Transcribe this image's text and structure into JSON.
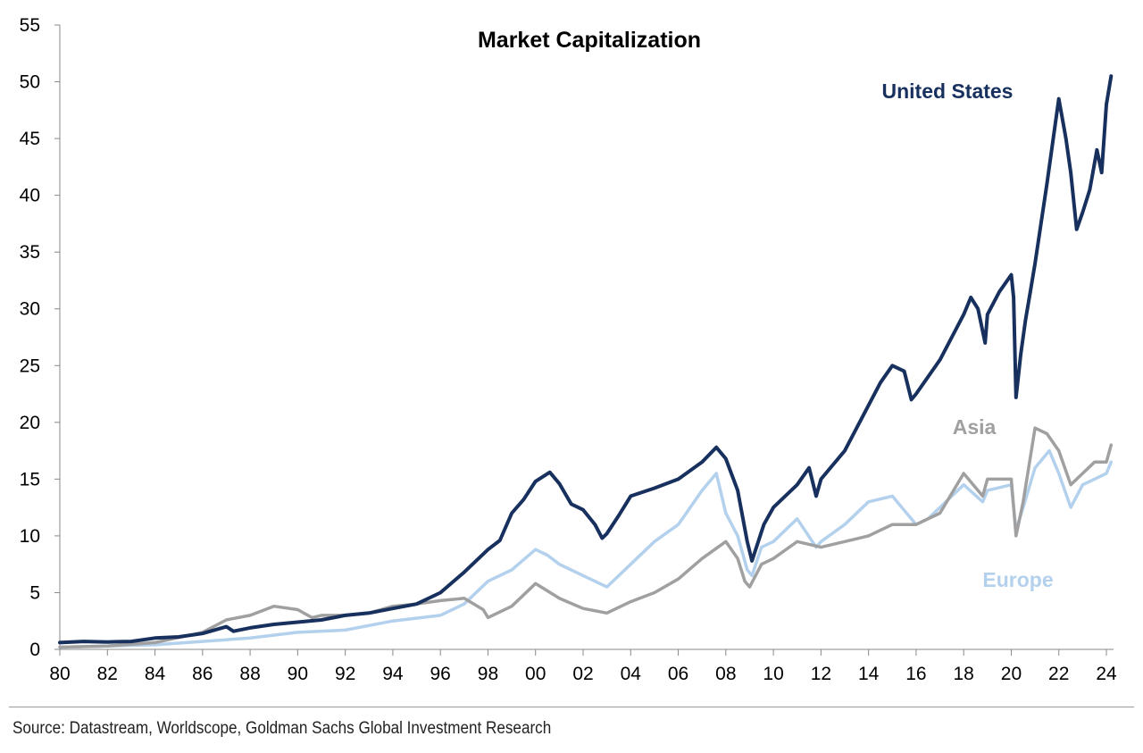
{
  "chart_data": {
    "type": "line",
    "title": "Market Capitalization",
    "xlabel": "",
    "ylabel": "",
    "xlim": [
      1980,
      2024.3
    ],
    "ylim": [
      0,
      55
    ],
    "x_tick_values": [
      1980,
      1982,
      1984,
      1986,
      1988,
      1990,
      1992,
      1994,
      1996,
      1998,
      2000,
      2002,
      2004,
      2006,
      2008,
      2010,
      2012,
      2014,
      2016,
      2018,
      2020,
      2022,
      2024
    ],
    "x_tick_labels": [
      "80",
      "82",
      "84",
      "86",
      "88",
      "90",
      "92",
      "94",
      "96",
      "98",
      "00",
      "02",
      "04",
      "06",
      "08",
      "10",
      "12",
      "14",
      "16",
      "18",
      "20",
      "22",
      "24"
    ],
    "y_ticks": [
      0,
      5,
      10,
      15,
      20,
      25,
      30,
      35,
      40,
      45,
      50,
      55
    ],
    "grid": false,
    "legend": "inline labels",
    "series": [
      {
        "name": "United States",
        "color": "#17305e",
        "points": [
          [
            1980,
            0.6
          ],
          [
            1981,
            0.7
          ],
          [
            1982,
            0.65
          ],
          [
            1983,
            0.7
          ],
          [
            1984,
            1.0
          ],
          [
            1985,
            1.1
          ],
          [
            1986,
            1.4
          ],
          [
            1987,
            2.0
          ],
          [
            1987.3,
            1.6
          ],
          [
            1988,
            1.9
          ],
          [
            1989,
            2.2
          ],
          [
            1990,
            2.4
          ],
          [
            1991,
            2.6
          ],
          [
            1992,
            3.0
          ],
          [
            1993,
            3.2
          ],
          [
            1994,
            3.6
          ],
          [
            1995,
            4.0
          ],
          [
            1996,
            5.0
          ],
          [
            1997,
            6.8
          ],
          [
            1998,
            8.8
          ],
          [
            1998.5,
            9.6
          ],
          [
            1999,
            12.0
          ],
          [
            1999.5,
            13.2
          ],
          [
            2000,
            14.8
          ],
          [
            2000.6,
            15.6
          ],
          [
            2001,
            14.6
          ],
          [
            2001.5,
            12.8
          ],
          [
            2002,
            12.3
          ],
          [
            2002.5,
            11.0
          ],
          [
            2002.8,
            9.8
          ],
          [
            2003,
            10.2
          ],
          [
            2003.5,
            11.8
          ],
          [
            2004,
            13.5
          ],
          [
            2005,
            14.2
          ],
          [
            2006,
            15.0
          ],
          [
            2007,
            16.5
          ],
          [
            2007.6,
            17.8
          ],
          [
            2008,
            16.8
          ],
          [
            2008.5,
            14.0
          ],
          [
            2008.9,
            9.5
          ],
          [
            2009.1,
            7.8
          ],
          [
            2009.6,
            11.0
          ],
          [
            2010,
            12.5
          ],
          [
            2011,
            14.5
          ],
          [
            2011.5,
            16.0
          ],
          [
            2011.8,
            13.5
          ],
          [
            2012,
            15.0
          ],
          [
            2013,
            17.5
          ],
          [
            2014,
            21.5
          ],
          [
            2014.5,
            23.5
          ],
          [
            2015,
            25.0
          ],
          [
            2015.5,
            24.5
          ],
          [
            2015.8,
            22.0
          ],
          [
            2016,
            22.5
          ],
          [
            2016.5,
            24.0
          ],
          [
            2017,
            25.5
          ],
          [
            2017.5,
            27.5
          ],
          [
            2018,
            29.5
          ],
          [
            2018.3,
            31.0
          ],
          [
            2018.6,
            30.0
          ],
          [
            2018.9,
            27.0
          ],
          [
            2019,
            29.5
          ],
          [
            2019.5,
            31.5
          ],
          [
            2020,
            33.0
          ],
          [
            2020.1,
            31.0
          ],
          [
            2020.2,
            22.2
          ],
          [
            2020.4,
            26.0
          ],
          [
            2020.6,
            29.0
          ],
          [
            2020.8,
            31.5
          ],
          [
            2021,
            34.0
          ],
          [
            2021.5,
            41.0
          ],
          [
            2022,
            48.5
          ],
          [
            2022.3,
            45.0
          ],
          [
            2022.5,
            42.0
          ],
          [
            2022.75,
            37.0
          ],
          [
            2023,
            38.5
          ],
          [
            2023.3,
            40.5
          ],
          [
            2023.6,
            44.0
          ],
          [
            2023.8,
            42.0
          ],
          [
            2024,
            48.0
          ],
          [
            2024.2,
            50.5
          ]
        ]
      },
      {
        "name": "Asia",
        "color": "#a0a0a0",
        "points": [
          [
            1980,
            0.2
          ],
          [
            1982,
            0.3
          ],
          [
            1984,
            0.6
          ],
          [
            1986,
            1.5
          ],
          [
            1987,
            2.6
          ],
          [
            1988,
            3.0
          ],
          [
            1989,
            3.8
          ],
          [
            1990,
            3.5
          ],
          [
            1990.6,
            2.8
          ],
          [
            1991,
            3.0
          ],
          [
            1992,
            3.0
          ],
          [
            1993,
            3.2
          ],
          [
            1994,
            3.8
          ],
          [
            1995,
            4.0
          ],
          [
            1996,
            4.3
          ],
          [
            1997,
            4.5
          ],
          [
            1997.8,
            3.5
          ],
          [
            1998,
            2.8
          ],
          [
            1999,
            3.8
          ],
          [
            2000,
            5.8
          ],
          [
            2001,
            4.5
          ],
          [
            2002,
            3.6
          ],
          [
            2003,
            3.2
          ],
          [
            2004,
            4.2
          ],
          [
            2005,
            5.0
          ],
          [
            2006,
            6.2
          ],
          [
            2007,
            8.0
          ],
          [
            2008,
            9.5
          ],
          [
            2008.5,
            8.0
          ],
          [
            2008.8,
            6.0
          ],
          [
            2009,
            5.5
          ],
          [
            2009.5,
            7.5
          ],
          [
            2010,
            8.0
          ],
          [
            2011,
            9.5
          ],
          [
            2012,
            9.0
          ],
          [
            2013,
            9.5
          ],
          [
            2014,
            10.0
          ],
          [
            2015,
            11.0
          ],
          [
            2016,
            11.0
          ],
          [
            2017,
            12.0
          ],
          [
            2018,
            15.5
          ],
          [
            2018.8,
            13.5
          ],
          [
            2019,
            15.0
          ],
          [
            2020,
            15.0
          ],
          [
            2020.2,
            10.0
          ],
          [
            2020.5,
            13.0
          ],
          [
            2021,
            19.5
          ],
          [
            2021.5,
            19.0
          ],
          [
            2022,
            17.5
          ],
          [
            2022.5,
            14.5
          ],
          [
            2023,
            15.5
          ],
          [
            2023.5,
            16.5
          ],
          [
            2024,
            16.5
          ],
          [
            2024.2,
            18.0
          ]
        ]
      },
      {
        "name": "Europe",
        "color": "#b3d1ed",
        "points": [
          [
            1980,
            0.2
          ],
          [
            1982,
            0.3
          ],
          [
            1984,
            0.4
          ],
          [
            1986,
            0.7
          ],
          [
            1988,
            1.0
          ],
          [
            1990,
            1.5
          ],
          [
            1992,
            1.7
          ],
          [
            1994,
            2.5
          ],
          [
            1996,
            3.0
          ],
          [
            1997,
            4.0
          ],
          [
            1998,
            6.0
          ],
          [
            1999,
            7.0
          ],
          [
            2000,
            8.8
          ],
          [
            2000.5,
            8.3
          ],
          [
            2001,
            7.5
          ],
          [
            2002,
            6.5
          ],
          [
            2003,
            5.5
          ],
          [
            2004,
            7.5
          ],
          [
            2005,
            9.5
          ],
          [
            2006,
            11.0
          ],
          [
            2007,
            14.0
          ],
          [
            2007.6,
            15.5
          ],
          [
            2008,
            12.0
          ],
          [
            2008.5,
            10.0
          ],
          [
            2008.9,
            7.0
          ],
          [
            2009.1,
            6.5
          ],
          [
            2009.5,
            9.0
          ],
          [
            2010,
            9.5
          ],
          [
            2011,
            11.5
          ],
          [
            2011.8,
            9.0
          ],
          [
            2012,
            9.5
          ],
          [
            2013,
            11.0
          ],
          [
            2014,
            13.0
          ],
          [
            2015,
            13.5
          ],
          [
            2016,
            11.0
          ],
          [
            2016.5,
            11.5
          ],
          [
            2017,
            12.5
          ],
          [
            2018,
            14.5
          ],
          [
            2018.8,
            13.0
          ],
          [
            2019,
            14.0
          ],
          [
            2020,
            14.5
          ],
          [
            2020.2,
            10.5
          ],
          [
            2020.5,
            12.5
          ],
          [
            2021,
            16.0
          ],
          [
            2021.6,
            17.5
          ],
          [
            2022,
            15.5
          ],
          [
            2022.5,
            12.5
          ],
          [
            2023,
            14.5
          ],
          [
            2023.5,
            15.0
          ],
          [
            2024,
            15.5
          ],
          [
            2024.2,
            16.5
          ]
        ]
      }
    ],
    "annotations": [
      {
        "text": "United States",
        "series": "United States"
      },
      {
        "text": "Asia",
        "series": "Asia"
      },
      {
        "text": "Europe",
        "series": "Europe"
      }
    ]
  },
  "source_note": "Source: Datastream, Worldscope, Goldman Sachs Global Investment Research"
}
